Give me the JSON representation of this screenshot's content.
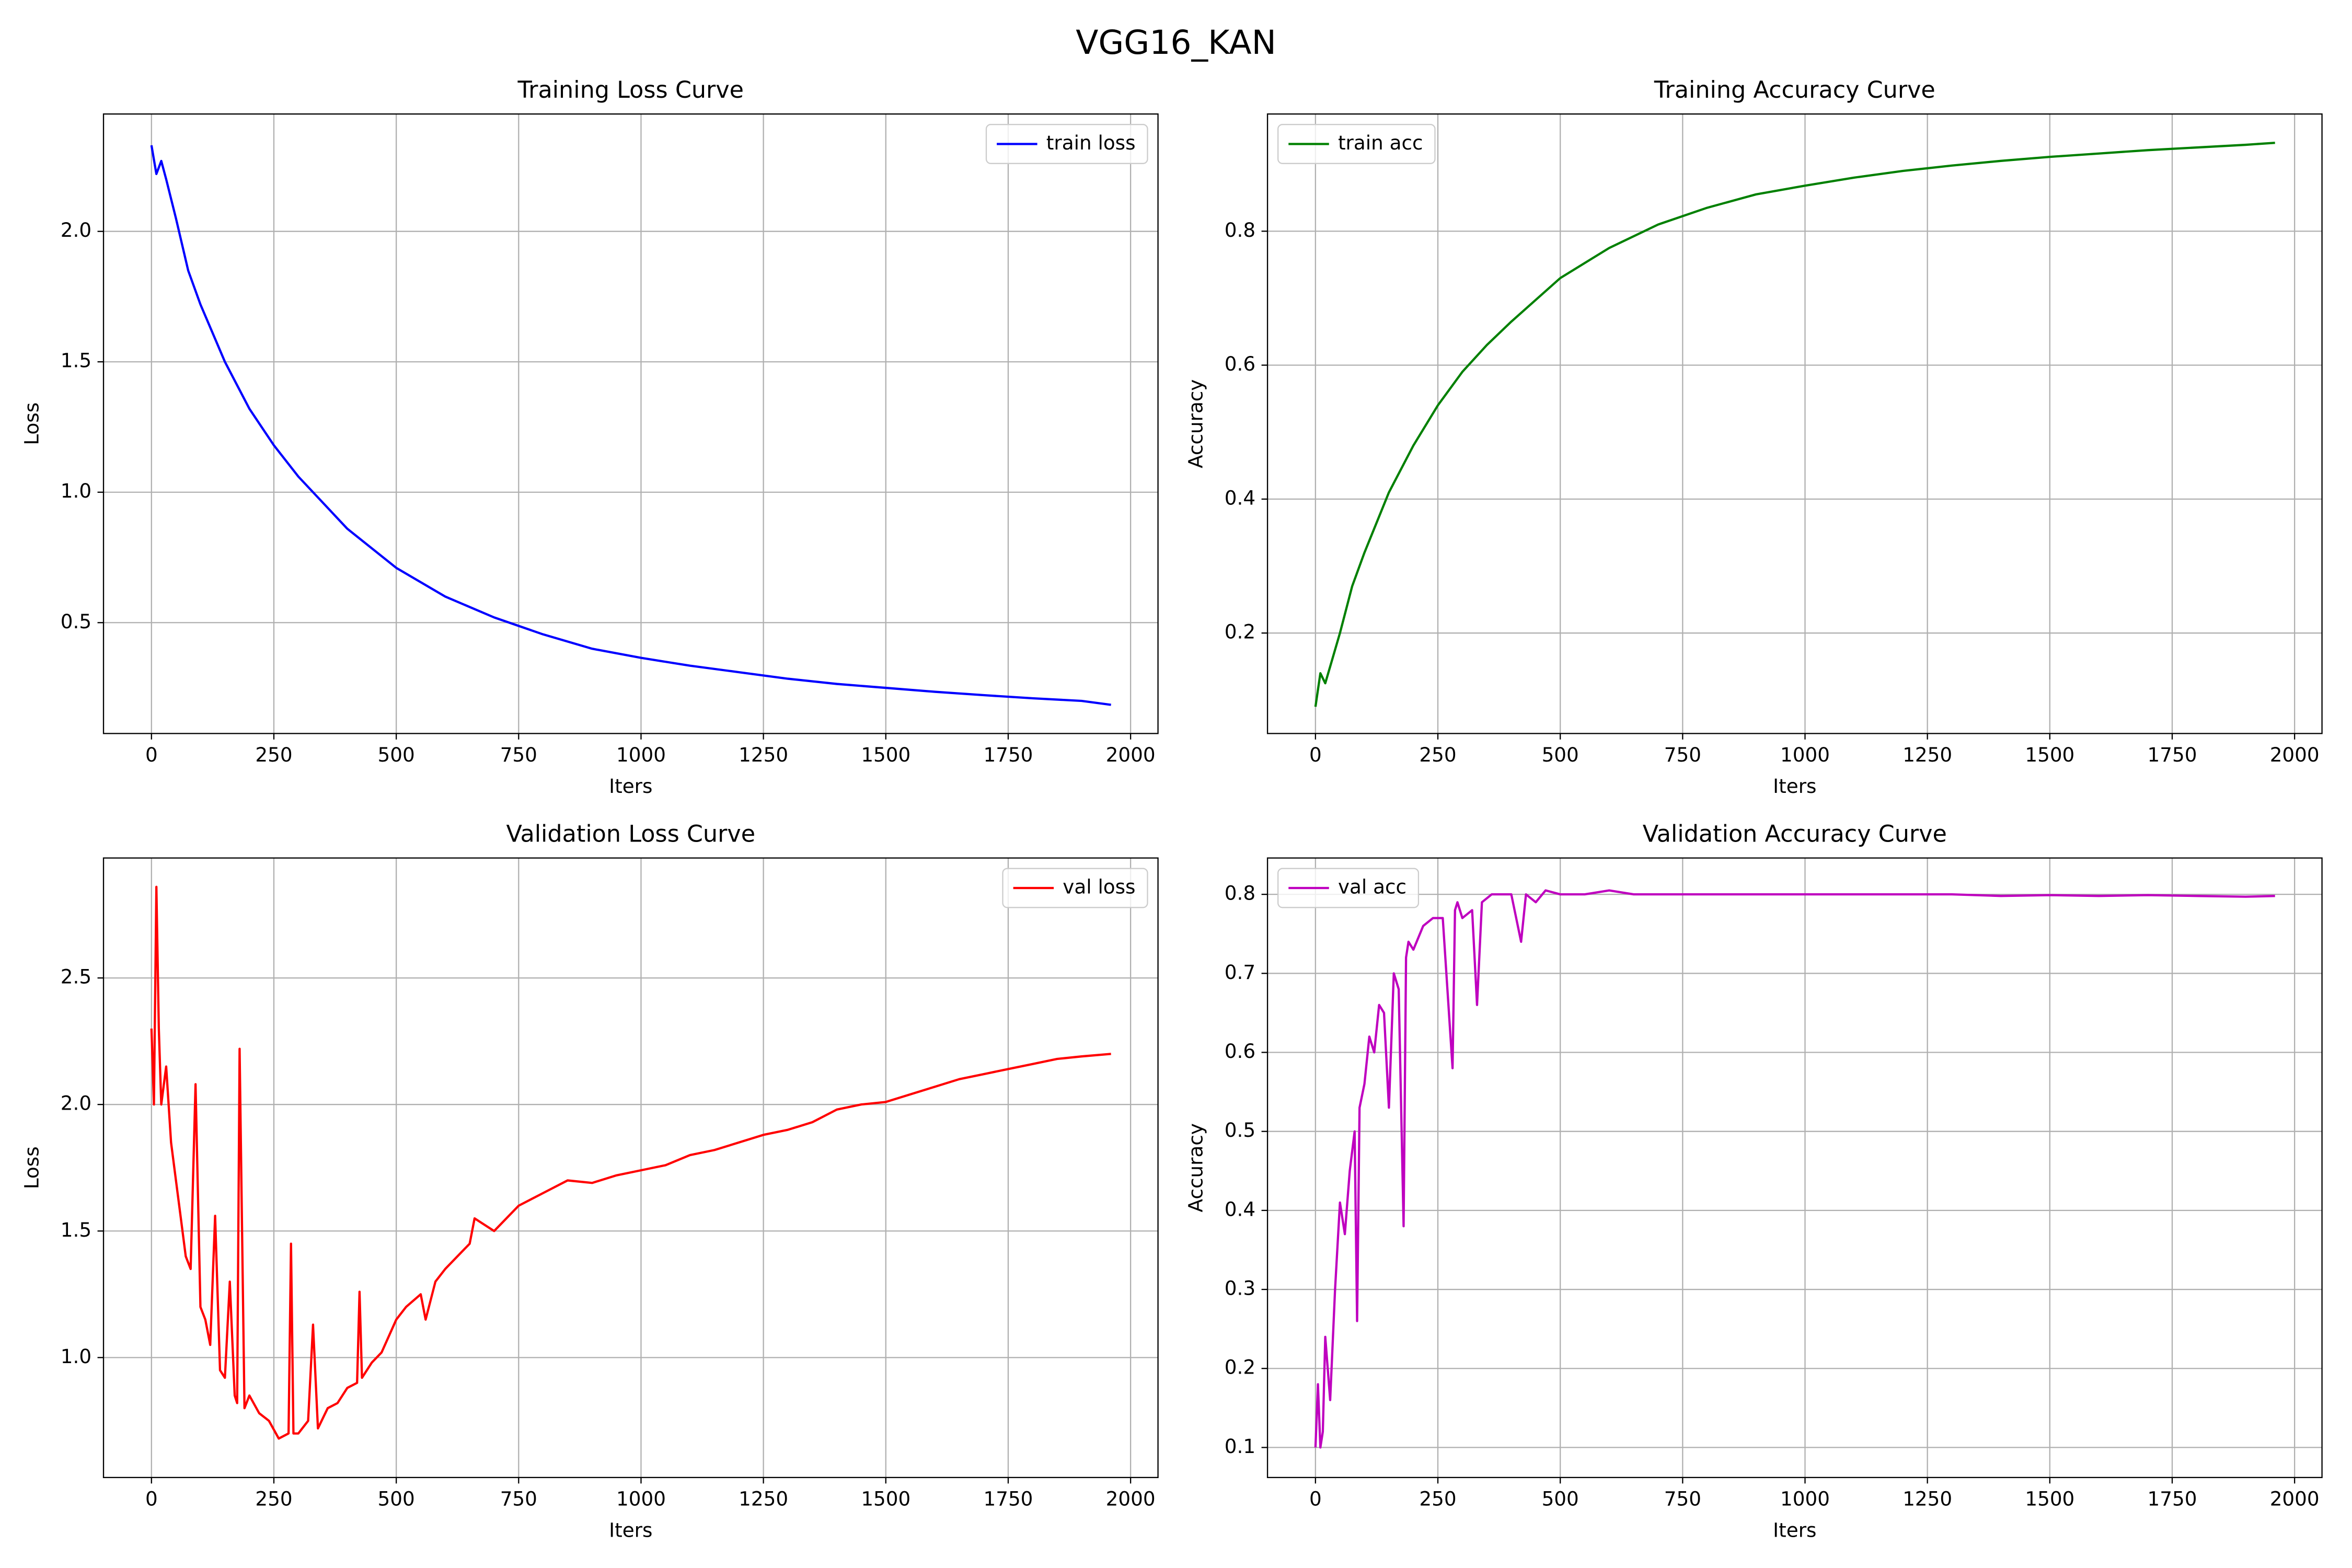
{
  "title": "VGG16_KAN",
  "chart_data": [
    {
      "type": "line",
      "title": "Training Loss Curve",
      "xlabel": "Iters",
      "ylabel": "Loss",
      "x": [
        0,
        10,
        20,
        30,
        50,
        75,
        100,
        150,
        200,
        250,
        300,
        350,
        400,
        500,
        600,
        700,
        800,
        900,
        1000,
        1100,
        1200,
        1300,
        1400,
        1500,
        1600,
        1700,
        1800,
        1900,
        1960
      ],
      "series": [
        {
          "name": "train loss",
          "color": "#0000ff",
          "values": [
            2.33,
            2.22,
            2.27,
            2.2,
            2.05,
            1.85,
            1.72,
            1.5,
            1.32,
            1.18,
            1.06,
            0.96,
            0.86,
            0.71,
            0.6,
            0.52,
            0.455,
            0.4,
            0.365,
            0.335,
            0.31,
            0.285,
            0.265,
            0.25,
            0.235,
            0.222,
            0.21,
            0.2,
            0.185
          ]
        }
      ],
      "xlim": [
        -98,
        2056
      ],
      "ylim": [
        0.075,
        2.45
      ],
      "xticks": [
        0,
        250,
        500,
        750,
        1000,
        1250,
        1500,
        1750,
        2000
      ],
      "yticks": [
        0.5,
        {
          "value": 1,
          "label": "1.0"
        },
        1.5,
        {
          "value": 2,
          "label": "2.0"
        }
      ],
      "grid": true,
      "legend": "upper right"
    },
    {
      "type": "line",
      "title": "Training Accuracy Curve",
      "xlabel": "Iters",
      "ylabel": "Accuracy",
      "x": [
        0,
        10,
        20,
        30,
        50,
        75,
        100,
        150,
        200,
        250,
        300,
        350,
        400,
        500,
        600,
        700,
        800,
        900,
        1000,
        1100,
        1200,
        1300,
        1400,
        1500,
        1600,
        1700,
        1800,
        1900,
        1960
      ],
      "series": [
        {
          "name": "train acc",
          "color": "#008000",
          "values": [
            0.09,
            0.14,
            0.125,
            0.15,
            0.2,
            0.27,
            0.32,
            0.41,
            0.48,
            0.54,
            0.59,
            0.63,
            0.665,
            0.73,
            0.775,
            0.81,
            0.835,
            0.855,
            0.868,
            0.88,
            0.89,
            0.898,
            0.905,
            0.911,
            0.916,
            0.921,
            0.925,
            0.929,
            0.932
          ]
        }
      ],
      "xlim": [
        -98,
        2056
      ],
      "ylim": [
        0.05,
        0.975
      ],
      "xticks": [
        0,
        250,
        500,
        750,
        1000,
        1250,
        1500,
        1750,
        2000
      ],
      "yticks": [
        0.2,
        0.4,
        0.6,
        0.8
      ],
      "grid": true,
      "legend": "upper left"
    },
    {
      "type": "line",
      "title": "Validation Loss Curve",
      "xlabel": "Iters",
      "ylabel": "Loss",
      "x": [
        0,
        5,
        10,
        15,
        20,
        30,
        40,
        50,
        60,
        70,
        80,
        90,
        100,
        110,
        120,
        130,
        140,
        150,
        160,
        170,
        175,
        180,
        190,
        200,
        220,
        240,
        260,
        280,
        285,
        290,
        300,
        320,
        330,
        340,
        360,
        380,
        400,
        420,
        425,
        430,
        450,
        470,
        500,
        520,
        550,
        560,
        580,
        600,
        650,
        660,
        700,
        750,
        800,
        850,
        900,
        950,
        1000,
        1050,
        1100,
        1150,
        1200,
        1250,
        1300,
        1350,
        1400,
        1450,
        1500,
        1550,
        1600,
        1650,
        1700,
        1750,
        1800,
        1850,
        1900,
        1960
      ],
      "series": [
        {
          "name": "val loss",
          "color": "#ff0000",
          "values": [
            2.3,
            2.0,
            2.86,
            2.3,
            2.0,
            2.15,
            1.85,
            1.7,
            1.55,
            1.4,
            1.35,
            2.08,
            1.2,
            1.15,
            1.05,
            1.56,
            0.95,
            0.92,
            1.3,
            0.85,
            0.82,
            2.22,
            0.8,
            0.85,
            0.78,
            0.75,
            0.68,
            0.7,
            1.45,
            0.7,
            0.7,
            0.75,
            1.13,
            0.72,
            0.8,
            0.82,
            0.88,
            0.9,
            1.26,
            0.92,
            0.98,
            1.02,
            1.15,
            1.2,
            1.25,
            1.15,
            1.3,
            1.35,
            1.45,
            1.55,
            1.5,
            1.6,
            1.65,
            1.7,
            1.69,
            1.72,
            1.74,
            1.76,
            1.8,
            1.82,
            1.85,
            1.88,
            1.9,
            1.93,
            1.98,
            2.0,
            2.01,
            2.04,
            2.07,
            2.1,
            2.12,
            2.14,
            2.16,
            2.18,
            2.19,
            2.2
          ]
        }
      ],
      "xlim": [
        -98,
        2056
      ],
      "ylim": [
        0.526,
        2.974
      ],
      "xticks": [
        0,
        250,
        500,
        750,
        1000,
        1250,
        1500,
        1750,
        2000
      ],
      "yticks": [
        {
          "value": 1,
          "label": "1.0"
        },
        1.5,
        {
          "value": 2,
          "label": "2.0"
        },
        2.5
      ],
      "grid": true,
      "legend": "upper right"
    },
    {
      "type": "line",
      "title": "Validation Accuracy Curve",
      "xlabel": "Iters",
      "ylabel": "Accuracy",
      "x": [
        0,
        5,
        10,
        15,
        20,
        30,
        40,
        50,
        60,
        70,
        80,
        85,
        90,
        100,
        110,
        120,
        130,
        140,
        150,
        160,
        170,
        180,
        185,
        190,
        200,
        220,
        240,
        260,
        280,
        285,
        290,
        300,
        320,
        330,
        340,
        360,
        400,
        420,
        430,
        450,
        470,
        500,
        550,
        600,
        650,
        700,
        800,
        900,
        1000,
        1100,
        1200,
        1300,
        1400,
        1500,
        1600,
        1700,
        1800,
        1900,
        1960
      ],
      "series": [
        {
          "name": "val acc",
          "color": "#bf00bf",
          "values": [
            0.1,
            0.18,
            0.1,
            0.12,
            0.24,
            0.16,
            0.3,
            0.41,
            0.37,
            0.45,
            0.5,
            0.26,
            0.53,
            0.56,
            0.62,
            0.6,
            0.66,
            0.65,
            0.53,
            0.7,
            0.68,
            0.38,
            0.72,
            0.74,
            0.73,
            0.76,
            0.77,
            0.77,
            0.58,
            0.78,
            0.79,
            0.77,
            0.78,
            0.66,
            0.79,
            0.8,
            0.8,
            0.74,
            0.8,
            0.79,
            0.805,
            0.8,
            0.8,
            0.805,
            0.8,
            0.8,
            0.8,
            0.8,
            0.8,
            0.8,
            0.8,
            0.8,
            0.798,
            0.799,
            0.798,
            0.799,
            0.798,
            0.797,
            0.798
          ]
        }
      ],
      "xlim": [
        -98,
        2056
      ],
      "ylim": [
        0.062,
        0.846
      ],
      "xticks": [
        0,
        250,
        500,
        750,
        1000,
        1250,
        1500,
        1750,
        2000
      ],
      "yticks": [
        0.1,
        0.2,
        0.3,
        0.4,
        0.5,
        0.6,
        0.7,
        0.8
      ],
      "grid": true,
      "legend": "upper left"
    }
  ]
}
